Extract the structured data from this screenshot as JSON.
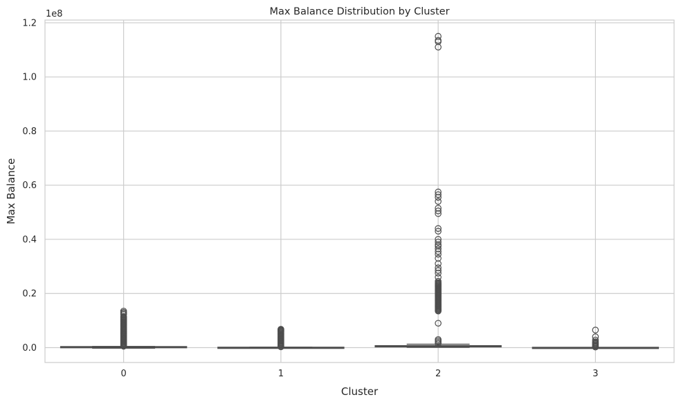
{
  "chart_data": {
    "type": "box",
    "title": "Max Balance Distribution by Cluster",
    "xlabel": "Cluster",
    "ylabel": "Max Balance",
    "y_offset_label": "1e8",
    "categories": [
      "0",
      "1",
      "2",
      "3"
    ],
    "y_ticks": [
      0.0,
      0.2,
      0.4,
      0.6,
      0.8,
      1.0,
      1.2
    ],
    "y_tick_labels": [
      "0.0",
      "0.2",
      "0.4",
      "0.6",
      "0.8",
      "1.0",
      "1.2"
    ],
    "y_scale": 100000000,
    "ylim": [
      -0.055,
      1.21
    ],
    "xlim": [
      -0.5,
      3.5
    ],
    "grid": true,
    "colors": {
      "box": "#4d4d4d",
      "flier": "#4d4d4d",
      "grid": "#cccccc",
      "spine": "#cccccc"
    },
    "boxes": [
      {
        "category": "0",
        "q1": 0.0,
        "median": 0.0012,
        "q3": 0.0035,
        "whisker_low": -0.002,
        "whisker_high": 0.0042,
        "outlier_range": [
          0.005,
          0.115
        ],
        "outliers": [
          0.135,
          0.13,
          0.126,
          0.122
        ]
      },
      {
        "category": "1",
        "q1": -0.002,
        "median": -0.001,
        "q3": 0.0012,
        "whisker_low": -0.002,
        "whisker_high": 0.0012,
        "outlier_range": [
          0.003,
          0.06
        ],
        "outliers": [
          0.068,
          0.066,
          0.064,
          0.062
        ]
      },
      {
        "category": "2",
        "q1": 0.003,
        "median": 0.0045,
        "q3": 0.007,
        "whisker_low": 0.001,
        "whisker_high": 0.0125,
        "outlier_range": [
          0.135,
          0.24
        ],
        "outliers": [
          0.015,
          0.02,
          0.025,
          0.03,
          0.09,
          0.245,
          0.26,
          0.275,
          0.285,
          0.295,
          0.31,
          0.33,
          0.345,
          0.355,
          0.365,
          0.375,
          0.38,
          0.39,
          0.4,
          0.43,
          0.44,
          0.495,
          0.505,
          0.515,
          0.54,
          0.555,
          0.565,
          0.575,
          1.11,
          1.13,
          1.135,
          1.15
        ]
      },
      {
        "category": "3",
        "q1": -0.002,
        "median": -0.001,
        "q3": 0.0008,
        "whisker_low": -0.002,
        "whisker_high": 0.0008,
        "outlier_range": [
          0.002,
          0.015
        ],
        "outliers": [
          0.018,
          0.022,
          0.028,
          0.04,
          0.065
        ]
      }
    ]
  }
}
